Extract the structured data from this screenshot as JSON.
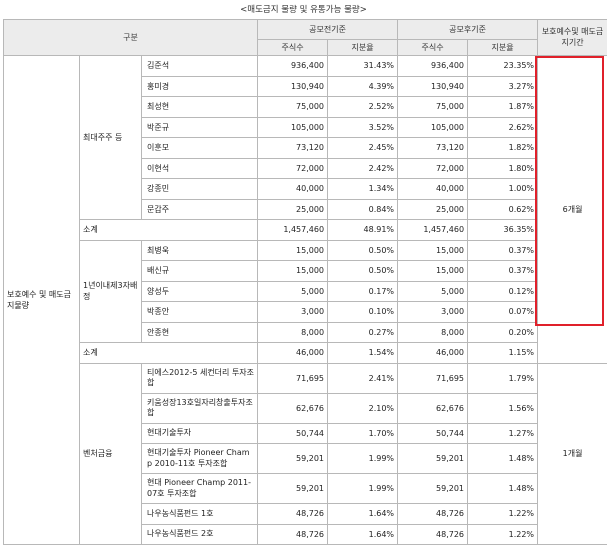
{
  "title": "<매도금지 물량 및 유통가능 물량>",
  "header": {
    "category": "구분",
    "before": "공모전기준",
    "after": "공모후기준",
    "shares": "주식수",
    "ratio": "지분율",
    "lockup": "보호예수및 매도금지기간"
  },
  "section_label": "보호예수 및 매도금지물량",
  "group1": {
    "label": "최대주주 등",
    "rows": [
      {
        "name": "김준석",
        "pre_shares": "936,400",
        "pre_ratio": "31.43%",
        "post_shares": "936,400",
        "post_ratio": "23.35%"
      },
      {
        "name": "홍미경",
        "pre_shares": "130,940",
        "pre_ratio": "4.39%",
        "post_shares": "130,940",
        "post_ratio": "3.27%"
      },
      {
        "name": "최성현",
        "pre_shares": "75,000",
        "pre_ratio": "2.52%",
        "post_shares": "75,000",
        "post_ratio": "1.87%"
      },
      {
        "name": "박준규",
        "pre_shares": "105,000",
        "pre_ratio": "3.52%",
        "post_shares": "105,000",
        "post_ratio": "2.62%"
      },
      {
        "name": "이훈모",
        "pre_shares": "73,120",
        "pre_ratio": "2.45%",
        "post_shares": "73,120",
        "post_ratio": "1.82%"
      },
      {
        "name": "이현석",
        "pre_shares": "72,000",
        "pre_ratio": "2.42%",
        "post_shares": "72,000",
        "post_ratio": "1.80%"
      },
      {
        "name": "강종민",
        "pre_shares": "40,000",
        "pre_ratio": "1.34%",
        "post_shares": "40,000",
        "post_ratio": "1.00%"
      },
      {
        "name": "문갑주",
        "pre_shares": "25,000",
        "pre_ratio": "0.84%",
        "post_shares": "25,000",
        "post_ratio": "0.62%"
      }
    ],
    "subtotal": {
      "label": "소계",
      "pre_shares": "1,457,460",
      "pre_ratio": "48.91%",
      "post_shares": "1,457,460",
      "post_ratio": "36.35%"
    }
  },
  "group2": {
    "label": "1년이내제3자배정",
    "rows": [
      {
        "name": "최병욱",
        "pre_shares": "15,000",
        "pre_ratio": "0.50%",
        "post_shares": "15,000",
        "post_ratio": "0.37%"
      },
      {
        "name": "배신규",
        "pre_shares": "15,000",
        "pre_ratio": "0.50%",
        "post_shares": "15,000",
        "post_ratio": "0.37%"
      },
      {
        "name": "양성두",
        "pre_shares": "5,000",
        "pre_ratio": "0.17%",
        "post_shares": "5,000",
        "post_ratio": "0.12%"
      },
      {
        "name": "박종안",
        "pre_shares": "3,000",
        "pre_ratio": "0.10%",
        "post_shares": "3,000",
        "post_ratio": "0.07%"
      },
      {
        "name": "안종현",
        "pre_shares": "8,000",
        "pre_ratio": "0.27%",
        "post_shares": "8,000",
        "post_ratio": "0.20%"
      }
    ],
    "subtotal": {
      "label": "소계",
      "pre_shares": "46,000",
      "pre_ratio": "1.54%",
      "post_shares": "46,000",
      "post_ratio": "1.15%"
    }
  },
  "period_6m": "6개월",
  "group3": {
    "label": "벤처금융",
    "rows": [
      {
        "name": "티에스2012-5 세컨더리 투자조합",
        "pre_shares": "71,695",
        "pre_ratio": "2.41%",
        "post_shares": "71,695",
        "post_ratio": "1.79%"
      },
      {
        "name": "키움성장13호일자리창출투자조합",
        "pre_shares": "62,676",
        "pre_ratio": "2.10%",
        "post_shares": "62,676",
        "post_ratio": "1.56%"
      },
      {
        "name": "현대기술투자",
        "pre_shares": "50,744",
        "pre_ratio": "1.70%",
        "post_shares": "50,744",
        "post_ratio": "1.27%"
      },
      {
        "name": "현대기술투자 Pioneer Champ 2010-11호 투자조합",
        "pre_shares": "59,201",
        "pre_ratio": "1.99%",
        "post_shares": "59,201",
        "post_ratio": "1.48%"
      },
      {
        "name": "현대 Pioneer Champ 2011-07호 투자조합",
        "pre_shares": "59,201",
        "pre_ratio": "1.99%",
        "post_shares": "59,201",
        "post_ratio": "1.48%"
      },
      {
        "name": "나우농식품펀드 1호",
        "pre_shares": "48,726",
        "pre_ratio": "1.64%",
        "post_shares": "48,726",
        "post_ratio": "1.22%"
      },
      {
        "name": "나우농식품펀드 2호",
        "pre_shares": "48,726",
        "pre_ratio": "1.64%",
        "post_shares": "48,726",
        "post_ratio": "1.22%"
      }
    ]
  },
  "period_1m": "1개월"
}
